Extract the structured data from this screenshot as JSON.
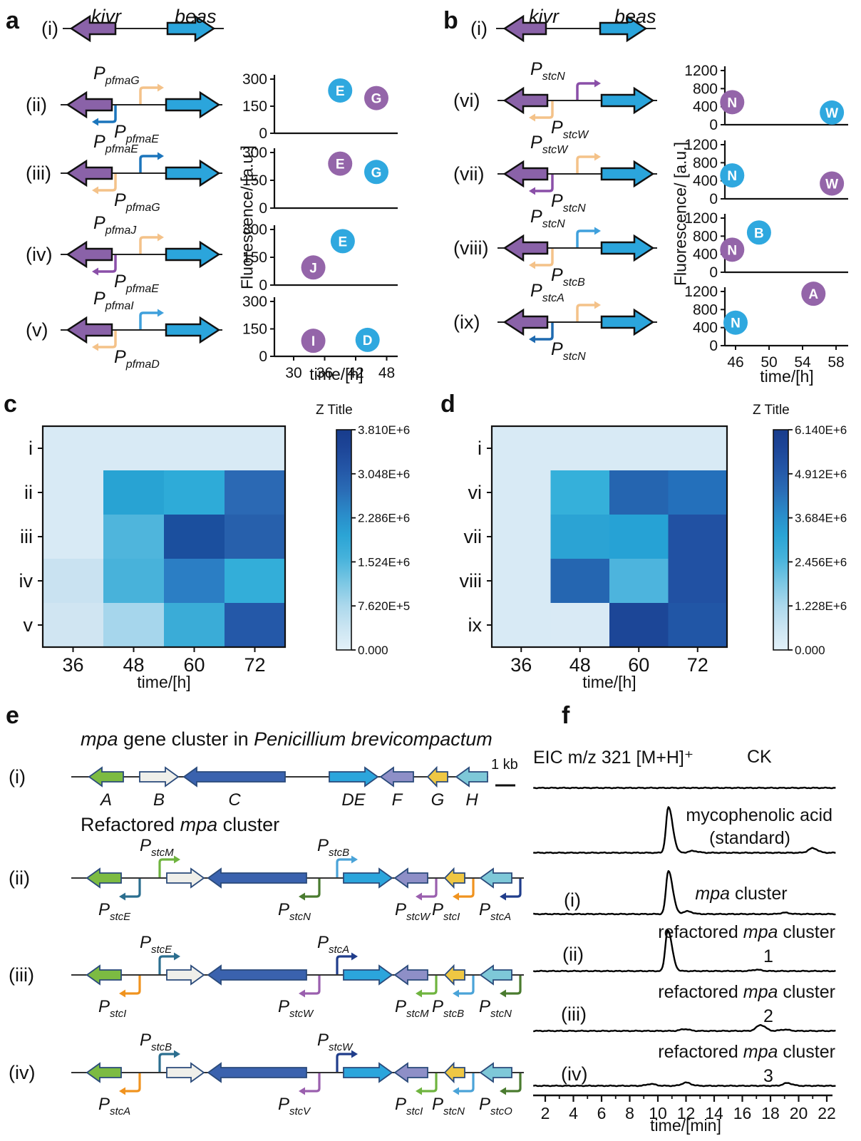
{
  "panels": {
    "a": "a",
    "b": "b",
    "c": "c",
    "d": "d",
    "e": "e",
    "f": "f"
  },
  "constructs": {
    "gene_left": "kivr",
    "gene_right": "beas",
    "gene_left_color": "#8A62A8",
    "gene_right_color": "#2BA5DC",
    "promoter_prefix": "P",
    "panel_a": {
      "row_i_id": "(i)",
      "rows": [
        {
          "id": "(ii)",
          "top_sub": "pfmaG",
          "top_color": "#F4C289",
          "bottom_sub": "pfmaE",
          "bottom_color": "#1B75BC"
        },
        {
          "id": "(iii)",
          "top_sub": "pfmaE",
          "top_color": "#1B75BC",
          "bottom_sub": "pfmaG",
          "bottom_color": "#F4C289"
        },
        {
          "id": "(iv)",
          "top_sub": "pfmaJ",
          "top_color": "#F4C289",
          "bottom_sub": "pfmaE",
          "bottom_color": "#8A4FA8"
        },
        {
          "id": "(v)",
          "top_sub": "pfmaI",
          "top_color": "#3FA0DC",
          "bottom_sub": "pfmaD",
          "bottom_color": "#F4C289"
        }
      ]
    },
    "panel_b": {
      "row_i_id": "(i)",
      "rows": [
        {
          "id": "(vi)",
          "top_sub": "stcN",
          "top_color": "#8A4FA8",
          "bottom_sub": "stcW",
          "bottom_color": "#F4C289"
        },
        {
          "id": "(vii)",
          "top_sub": "stcW",
          "top_color": "#F4C289",
          "bottom_sub": "stcN",
          "bottom_color": "#8A4FA8"
        },
        {
          "id": "(viii)",
          "top_sub": "stcN",
          "top_color": "#3FA0DC",
          "bottom_sub": "stcB",
          "bottom_color": "#F4C289"
        },
        {
          "id": "(ix)",
          "top_sub": "stcA",
          "top_color": "#F4C289",
          "bottom_sub": "stcN",
          "bottom_color": "#1E6AB0"
        }
      ]
    }
  },
  "chart_data": [
    {
      "id": "a_fluorescence",
      "type": "scatter",
      "ylabel": "Fluorescence/ [a.u.]",
      "xlabel": "time/[h]",
      "ylim": [
        0,
        300
      ],
      "yticks": [
        300,
        150,
        0
      ],
      "xticks": [
        30,
        36,
        42,
        48
      ],
      "plots": [
        {
          "construct": "(ii)",
          "points": [
            {
              "label": "E",
              "color": "#2FA8DF",
              "t": 39,
              "value": 237
            },
            {
              "label": "G",
              "color": "#9465A9",
              "t": 46,
              "value": 195
            }
          ]
        },
        {
          "construct": "(iii)",
          "points": [
            {
              "label": "E",
              "color": "#9465A9",
              "t": 39,
              "value": 240
            },
            {
              "label": "G",
              "color": "#2FA8DF",
              "t": 46,
              "value": 195
            }
          ]
        },
        {
          "construct": "(iv)",
          "points": [
            {
              "label": "J",
              "color": "#9465A9",
              "t": 33.8,
              "value": 95
            },
            {
              "label": "E",
              "color": "#2FA8DF",
              "t": 39.5,
              "value": 237
            }
          ]
        },
        {
          "construct": "(v)",
          "points": [
            {
              "label": "I",
              "color": "#9465A9",
              "t": 33.8,
              "value": 85
            },
            {
              "label": "D",
              "color": "#2FA8DF",
              "t": 44.3,
              "value": 90
            }
          ]
        }
      ]
    },
    {
      "id": "b_fluorescence",
      "type": "scatter",
      "ylabel": "Fluorescence/ [a.u.]",
      "xlabel": "time/[h]",
      "ylim": [
        0,
        1200
      ],
      "yticks": [
        1200,
        800,
        400,
        0
      ],
      "xticks": [
        46,
        50,
        54,
        58
      ],
      "plots": [
        {
          "construct": "(vi)",
          "points": [
            {
              "label": "N",
              "color": "#9465A9",
              "t": 45.6,
              "value": 500
            },
            {
              "label": "W",
              "color": "#2FA8DF",
              "t": 57.5,
              "value": 270
            }
          ]
        },
        {
          "construct": "(vii)",
          "points": [
            {
              "label": "N",
              "color": "#2FA8DF",
              "t": 45.6,
              "value": 520
            },
            {
              "label": "W",
              "color": "#9465A9",
              "t": 57.5,
              "value": 340
            }
          ]
        },
        {
          "construct": "(viii)",
          "points": [
            {
              "label": "N",
              "color": "#9465A9",
              "t": 45.6,
              "value": 500
            },
            {
              "label": "B",
              "color": "#2FA8DF",
              "t": 48.8,
              "value": 880
            }
          ]
        },
        {
          "construct": "(ix)",
          "points": [
            {
              "label": "N",
              "color": "#2FA8DF",
              "t": 46,
              "value": 510
            },
            {
              "label": "A",
              "color": "#9465A9",
              "t": 55.3,
              "value": 1150
            }
          ]
        }
      ]
    },
    {
      "id": "heatmap_c",
      "type": "heatmap",
      "xlabel": "time/[h]",
      "colorbar_title": "Z Title",
      "categories_x": [
        "36",
        "48",
        "60",
        "72"
      ],
      "categories_y": [
        "i",
        "ii",
        "iii",
        "iv",
        "v"
      ],
      "colorbar_ticks": [
        "3.810E+6",
        "3.048E+6",
        "2.286E+6",
        "1.524E+6",
        "7.620E+5",
        "0.000"
      ],
      "values_E6": [
        [
          0.15,
          0.18,
          0.18,
          0.15
        ],
        [
          0.15,
          2.2,
          2.1,
          3.0
        ],
        [
          0.15,
          1.7,
          3.6,
          3.2
        ],
        [
          0.35,
          1.8,
          2.6,
          2.0
        ],
        [
          0.25,
          0.9,
          2.0,
          3.3
        ]
      ],
      "cell_colors": [
        [
          "#D8EAF5",
          "#D8EAF5",
          "#D8EAF5",
          "#D8EAF5"
        ],
        [
          "#D8EAF5",
          "#28A3D3",
          "#2EABD8",
          "#2B69B4"
        ],
        [
          "#D8EAF5",
          "#4FB5DC",
          "#1B4F9E",
          "#2760AC"
        ],
        [
          "#C9E2F1",
          "#48B2DA",
          "#2B7EC4",
          "#33AED9"
        ],
        [
          "#D0E5F2",
          "#A6D6EC",
          "#3AACD7",
          "#2458A8"
        ]
      ],
      "colorbar_stops": [
        {
          "f": 0,
          "c": "#E3F1F9"
        },
        {
          "f": 0.1,
          "c": "#CBE5F2"
        },
        {
          "f": 0.2,
          "c": "#ACD8EC"
        },
        {
          "f": 0.3,
          "c": "#7EC8E4"
        },
        {
          "f": 0.42,
          "c": "#45B2DB"
        },
        {
          "f": 0.52,
          "c": "#2BA4D5"
        },
        {
          "f": 0.62,
          "c": "#2A8BC9"
        },
        {
          "f": 0.72,
          "c": "#2A6DB6"
        },
        {
          "f": 0.82,
          "c": "#2457A7"
        },
        {
          "f": 0.92,
          "c": "#1D4597"
        },
        {
          "f": 1,
          "c": "#183C8C"
        }
      ]
    },
    {
      "id": "heatmap_d",
      "type": "heatmap",
      "xlabel": "time/[h]",
      "colorbar_title": "Z Title",
      "categories_x": [
        "36",
        "48",
        "60",
        "72"
      ],
      "categories_y": [
        "i",
        "vi",
        "vii",
        "viii",
        "ix"
      ],
      "colorbar_ticks": [
        "6.140E+6",
        "4.912E+6",
        "3.684E+6",
        "2.456E+6",
        "1.228E+6",
        "0.000"
      ],
      "values_E6": [
        [
          0.2,
          0.2,
          0.2,
          0.2
        ],
        [
          0.2,
          2.3,
          4.6,
          4.3
        ],
        [
          0.2,
          2.6,
          2.6,
          5.2
        ],
        [
          0.2,
          4.5,
          2.1,
          5.2
        ],
        [
          0.2,
          0.25,
          5.6,
          5.1
        ]
      ],
      "cell_colors": [
        [
          "#D8EAF5",
          "#D8EAF5",
          "#D8EAF5",
          "#D8EAF5"
        ],
        [
          "#D8EAF5",
          "#35B0DA",
          "#2565B0",
          "#2470BB"
        ],
        [
          "#D8EAF5",
          "#2BA3D4",
          "#26A2D5",
          "#2151A3"
        ],
        [
          "#D8EAF5",
          "#2566B1",
          "#4DB4DD",
          "#2151A3"
        ],
        [
          "#D8EAF5",
          "#D9EAF5",
          "#1C4697",
          "#2156A6"
        ]
      ],
      "colorbar_stops": [
        {
          "f": 0,
          "c": "#E3F1F9"
        },
        {
          "f": 0.1,
          "c": "#CBE5F2"
        },
        {
          "f": 0.2,
          "c": "#ACD8EC"
        },
        {
          "f": 0.3,
          "c": "#7EC8E4"
        },
        {
          "f": 0.42,
          "c": "#45B2DB"
        },
        {
          "f": 0.52,
          "c": "#2BA4D5"
        },
        {
          "f": 0.62,
          "c": "#2A8BC9"
        },
        {
          "f": 0.72,
          "c": "#2A6DB6"
        },
        {
          "f": 0.82,
          "c": "#2457A7"
        },
        {
          "f": 0.92,
          "c": "#1D4597"
        },
        {
          "f": 1,
          "c": "#183C8C"
        }
      ]
    },
    {
      "id": "f_eic",
      "type": "line",
      "title": "EIC m/z 321 [M+H]⁺",
      "xlabel": "time/[min]",
      "xticks": [
        2,
        4,
        6,
        8,
        10,
        12,
        14,
        16,
        18,
        20,
        22
      ],
      "traces": [
        {
          "name": "CK",
          "peaks": []
        },
        {
          "name": "mycophenolic acid (standard)",
          "peaks": [
            {
              "t": 10.75,
              "h": 1.0
            },
            {
              "t": 12.5,
              "h": 0.04
            },
            {
              "t": 21.0,
              "h": 0.1
            }
          ]
        },
        {
          "name": "mpa cluster",
          "peaks": [
            {
              "t": 10.75,
              "h": 0.95
            },
            {
              "t": 12.1,
              "h": 0.06
            },
            {
              "t": 19.0,
              "h": 0.03
            }
          ]
        },
        {
          "name": "refactored mpa cluster 1",
          "peaks": [
            {
              "t": 10.7,
              "h": 0.9
            },
            {
              "t": 17.0,
              "h": 0.03
            }
          ]
        },
        {
          "name": "refactored mpa cluster 2",
          "peaks": [
            {
              "t": 11.9,
              "h": 0.04
            },
            {
              "t": 17.3,
              "h": 0.13
            },
            {
              "t": 19.0,
              "h": 0.03
            }
          ]
        },
        {
          "name": "refactored mpa cluster 3",
          "peaks": [
            {
              "t": 9.5,
              "h": 0.04
            },
            {
              "t": 12.0,
              "h": 0.07
            },
            {
              "t": 19.2,
              "h": 0.06
            }
          ]
        }
      ]
    }
  ],
  "panel_e": {
    "title_parts": {
      "p0": "mpa",
      "p1": " gene cluster in ",
      "p2": "Penicillium brevicompactum"
    },
    "subtitle_parts": {
      "p0": "Refactored ",
      "p1": "mpa",
      "p2": " cluster"
    },
    "scale_label": "1 kb",
    "row_i_id": "(i)",
    "genes": [
      {
        "name": "A",
        "color": "#7CBB42",
        "dir": "left"
      },
      {
        "name": "B",
        "color": "#EFEFEA",
        "dir": "right"
      },
      {
        "name": "C",
        "color": "#3A62AE",
        "dir": "left"
      },
      {
        "name": "DE",
        "color": "#2BA5DC",
        "dir": "right"
      },
      {
        "name": "F",
        "color": "#8E8FC7",
        "dir": "left"
      },
      {
        "name": "G",
        "color": "#EFC743",
        "dir": "left"
      },
      {
        "name": "H",
        "color": "#7EC8D8",
        "dir": "left"
      }
    ],
    "rows": [
      {
        "id": "(ii)",
        "top": [
          {
            "sub": "stcM",
            "color": "#6FB43F"
          },
          {
            "sub": "stcB",
            "color": "#4AA3D8"
          }
        ],
        "bottom": [
          {
            "sub": "stcE",
            "color": "#2B6E8F"
          },
          {
            "sub": "stcN",
            "color": "#4A7B2F"
          },
          {
            "sub": "stcW",
            "color": "#9A5FAE"
          },
          {
            "sub": "stcI",
            "color": "#F0931F"
          },
          {
            "sub": "stcA",
            "color": "#203D8B"
          }
        ]
      },
      {
        "id": "(iii)",
        "top": [
          {
            "sub": "stcE",
            "color": "#2B6E8F"
          },
          {
            "sub": "stcA",
            "color": "#203D8B"
          }
        ],
        "bottom": [
          {
            "sub": "stcI",
            "color": "#F0931F"
          },
          {
            "sub": "stcW",
            "color": "#9A5FAE"
          },
          {
            "sub": "stcM",
            "color": "#6FB43F"
          },
          {
            "sub": "stcB",
            "color": "#4AA3D8"
          },
          {
            "sub": "stcN",
            "color": "#4A7B2F"
          }
        ]
      },
      {
        "id": "(iv)",
        "top": [
          {
            "sub": "stcB",
            "color": "#2B6E8F"
          },
          {
            "sub": "stcW",
            "color": "#203D8B"
          }
        ],
        "bottom": [
          {
            "sub": "stcA",
            "color": "#F0931F"
          },
          {
            "sub": "stcV",
            "color": "#9A5FAE"
          },
          {
            "sub": "stcI",
            "color": "#6FB43F"
          },
          {
            "sub": "stcN",
            "color": "#4AA3D8"
          },
          {
            "sub": "stcO",
            "color": "#4A7B2F"
          }
        ]
      }
    ]
  },
  "panel_f": {
    "control_label": "CK",
    "trace_labels": [
      {
        "roman": "",
        "parts": [
          {
            "text": "mycophenolic acid",
            "italic": false
          }
        ],
        "line2": "(standard)"
      },
      {
        "roman": "(i)",
        "parts": [
          {
            "text": "mpa",
            "italic": true
          },
          {
            "text": " cluster",
            "italic": false
          }
        ],
        "line2": ""
      },
      {
        "roman": "(ii)",
        "parts": [
          {
            "text": "refactored ",
            "italic": false
          },
          {
            "text": "mpa",
            "italic": true
          },
          {
            "text": " cluster",
            "italic": false
          }
        ],
        "line2": "1"
      },
      {
        "roman": "(iii)",
        "parts": [
          {
            "text": "refactored ",
            "italic": false
          },
          {
            "text": "mpa",
            "italic": true
          },
          {
            "text": " cluster",
            "italic": false
          }
        ],
        "line2": "2"
      },
      {
        "roman": "(iv)",
        "parts": [
          {
            "text": "refactored ",
            "italic": false
          },
          {
            "text": "mpa",
            "italic": true
          },
          {
            "text": " cluster",
            "italic": false
          }
        ],
        "line2": "3"
      }
    ]
  }
}
